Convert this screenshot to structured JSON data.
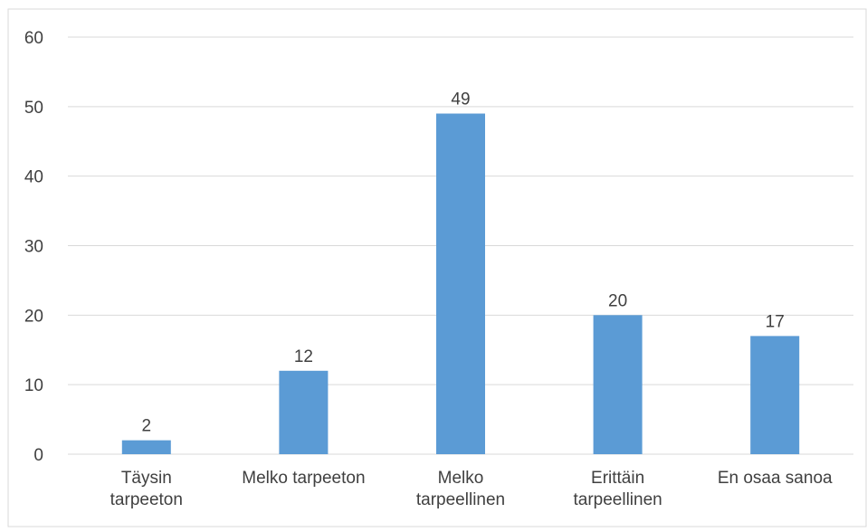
{
  "chart_data": {
    "type": "bar",
    "title": "",
    "xlabel": "",
    "ylabel": "",
    "categories": [
      [
        "Täysin",
        "tarpeeton"
      ],
      [
        "Melko tarpeeton"
      ],
      [
        "Melko",
        "tarpeellinen"
      ],
      [
        "Erittäin",
        "tarpeellinen"
      ],
      [
        "En osaa sanoa"
      ]
    ],
    "values": [
      2,
      12,
      49,
      20,
      17
    ],
    "data_labels": [
      "2",
      "12",
      "49",
      "20",
      "17"
    ],
    "ylim": [
      0,
      60
    ],
    "yticks": [
      0,
      10,
      20,
      30,
      40,
      50,
      60
    ],
    "ytick_labels": [
      "0",
      "10",
      "20",
      "30",
      "40",
      "50",
      "60"
    ],
    "grid": true,
    "legend": "none",
    "colors": {
      "bar": "#5b9bd5",
      "grid": "#d9d9d9",
      "text": "#404040",
      "border": "#d9d9d9"
    }
  }
}
